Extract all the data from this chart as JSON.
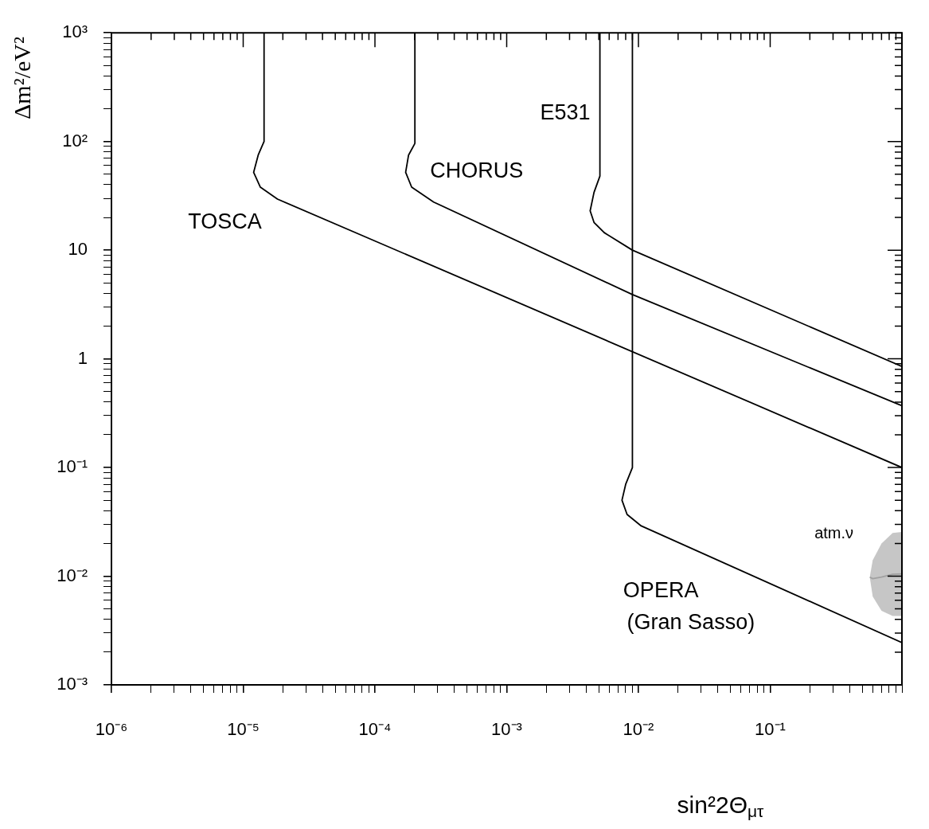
{
  "chart_data": {
    "type": "line",
    "xlabel": "sin²2Θ$_{μτ}$",
    "ylabel": "Δm²/eV²",
    "log": "xy",
    "grid": false,
    "legend": false,
    "xlim": [
      1e-06,
      1
    ],
    "ylim": [
      0.001,
      1000
    ],
    "xticks": [
      {
        "value": 1e-06,
        "label": "10⁻⁶"
      },
      {
        "value": 2e-06,
        "label": null
      },
      {
        "value": 3e-06,
        "label": null
      },
      {
        "value": 4e-06,
        "label": null
      },
      {
        "value": 5e-06,
        "label": null
      },
      {
        "value": 6e-06,
        "label": null
      },
      {
        "value": 7e-06,
        "label": null
      },
      {
        "value": 8e-06,
        "label": null
      },
      {
        "value": 9e-06,
        "label": null
      },
      {
        "value": 1e-05,
        "label": "10⁻⁵"
      },
      {
        "value": 2e-05,
        "label": null
      },
      {
        "value": 3e-05,
        "label": null
      },
      {
        "value": 4e-05,
        "label": null
      },
      {
        "value": 5e-05,
        "label": null
      },
      {
        "value": 6e-05,
        "label": null
      },
      {
        "value": 7e-05,
        "label": null
      },
      {
        "value": 8e-05,
        "label": null
      },
      {
        "value": 9e-05,
        "label": null
      },
      {
        "value": 0.0001,
        "label": "10⁻⁴"
      },
      {
        "value": 0.0002,
        "label": null
      },
      {
        "value": 0.0003,
        "label": null
      },
      {
        "value": 0.0004,
        "label": null
      },
      {
        "value": 0.0005,
        "label": null
      },
      {
        "value": 0.0006,
        "label": null
      },
      {
        "value": 0.0007,
        "label": null
      },
      {
        "value": 0.0008,
        "label": null
      },
      {
        "value": 0.0009,
        "label": null
      },
      {
        "value": 0.001,
        "label": "10⁻³"
      },
      {
        "value": 0.002,
        "label": null
      },
      {
        "value": 0.003,
        "label": null
      },
      {
        "value": 0.004,
        "label": null
      },
      {
        "value": 0.005,
        "label": null
      },
      {
        "value": 0.006,
        "label": null
      },
      {
        "value": 0.007,
        "label": null
      },
      {
        "value": 0.008,
        "label": null
      },
      {
        "value": 0.009,
        "label": null
      },
      {
        "value": 0.01,
        "label": "10⁻²"
      },
      {
        "value": 0.02,
        "label": null
      },
      {
        "value": 0.03,
        "label": null
      },
      {
        "value": 0.04,
        "label": null
      },
      {
        "value": 0.05,
        "label": null
      },
      {
        "value": 0.06,
        "label": null
      },
      {
        "value": 0.07,
        "label": null
      },
      {
        "value": 0.08,
        "label": null
      },
      {
        "value": 0.09,
        "label": null
      },
      {
        "value": 0.1,
        "label": "10⁻¹"
      },
      {
        "value": 0.2,
        "label": null
      },
      {
        "value": 0.3,
        "label": null
      },
      {
        "value": 0.4,
        "label": null
      },
      {
        "value": 0.5,
        "label": null
      },
      {
        "value": 0.6,
        "label": null
      },
      {
        "value": 0.7,
        "label": null
      },
      {
        "value": 0.8,
        "label": null
      },
      {
        "value": 0.9,
        "label": null
      },
      {
        "value": 1,
        "label": null
      }
    ],
    "yticks": [
      {
        "value": 0.001,
        "label": "10⁻³"
      },
      {
        "value": 0.002,
        "label": null
      },
      {
        "value": 0.003,
        "label": null
      },
      {
        "value": 0.004,
        "label": null
      },
      {
        "value": 0.005,
        "label": null
      },
      {
        "value": 0.006,
        "label": null
      },
      {
        "value": 0.007,
        "label": null
      },
      {
        "value": 0.008,
        "label": null
      },
      {
        "value": 0.009,
        "label": null
      },
      {
        "value": 0.01,
        "label": "10⁻²"
      },
      {
        "value": 0.02,
        "label": null
      },
      {
        "value": 0.03,
        "label": null
      },
      {
        "value": 0.04,
        "label": null
      },
      {
        "value": 0.05,
        "label": null
      },
      {
        "value": 0.06,
        "label": null
      },
      {
        "value": 0.07,
        "label": null
      },
      {
        "value": 0.08,
        "label": null
      },
      {
        "value": 0.09,
        "label": null
      },
      {
        "value": 0.1,
        "label": "10⁻¹"
      },
      {
        "value": 0.2,
        "label": null
      },
      {
        "value": 0.3,
        "label": null
      },
      {
        "value": 0.4,
        "label": null
      },
      {
        "value": 0.5,
        "label": null
      },
      {
        "value": 0.6,
        "label": null
      },
      {
        "value": 0.7,
        "label": null
      },
      {
        "value": 0.8,
        "label": null
      },
      {
        "value": 0.9,
        "label": null
      },
      1,
      {
        "value": 2,
        "label": null
      },
      {
        "value": 3,
        "label": null
      },
      {
        "value": 4,
        "label": null
      },
      {
        "value": 5,
        "label": null
      },
      {
        "value": 6,
        "label": null
      },
      {
        "value": 7,
        "label": null
      },
      {
        "value": 8,
        "label": null
      },
      {
        "value": 9,
        "label": null
      },
      10,
      {
        "value": 20,
        "label": null
      },
      {
        "value": 30,
        "label": null
      },
      {
        "value": 40,
        "label": null
      },
      {
        "value": 50,
        "label": null
      },
      {
        "value": 60,
        "label": null
      },
      {
        "value": 70,
        "label": null
      },
      {
        "value": 80,
        "label": null
      },
      {
        "value": 90,
        "label": null
      },
      {
        "value": 100,
        "label": "10²"
      },
      {
        "value": 200,
        "label": null
      },
      {
        "value": 300,
        "label": null
      },
      {
        "value": 400,
        "label": null
      },
      {
        "value": 500,
        "label": null
      },
      {
        "value": 600,
        "label": null
      },
      {
        "value": 700,
        "label": null
      },
      {
        "value": 800,
        "label": null
      },
      {
        "value": 900,
        "label": null
      },
      {
        "value": 1000,
        "label": "10³"
      }
    ],
    "series": [
      {
        "color": "#a0a0a0",
        "x": [
          0.57,
          0.6,
          0.7,
          0.85,
          1
        ],
        "values": [
          0.0098,
          0.0095,
          0.0098,
          0.0104,
          0.0105
        ],
        "lower": [
          0.0098,
          0.0065,
          0.0048,
          0.0043,
          0.0043
        ],
        "upper": [
          0.0098,
          0.014,
          0.02,
          0.025,
          0.0255
        ]
      },
      {
        "color": "#000000",
        "x": [
          1.44e-05,
          1.44e-05,
          1.3e-05,
          1.2e-05,
          1.35e-05,
          1.82e-05,
          1
        ],
        "values": [
          1000,
          100,
          75,
          52,
          38,
          29.5,
          0.1
        ]
      },
      {
        "color": "#000000",
        "x": [
          0.000201,
          0.000201,
          0.00018,
          0.000171,
          0.00019,
          0.000279,
          0.009,
          1
        ],
        "values": [
          1000,
          96,
          75,
          52,
          38,
          27.7,
          3.9,
          0.37
        ]
      },
      {
        "color": "#000000",
        "x": [
          0.0051,
          0.0051,
          0.0046,
          0.0043,
          0.0046,
          0.0055,
          0.009,
          1
        ],
        "values": [
          1000,
          48,
          34,
          23,
          18,
          14.5,
          10,
          0.85
        ]
      },
      {
        "color": "#000000",
        "x": [
          0.009,
          0.009,
          0.008,
          0.0075,
          0.0082,
          0.0105,
          1
        ],
        "values": [
          1000,
          0.1,
          0.07,
          0.05,
          0.037,
          0.029,
          0.00245
        ]
      }
    ],
    "annotations": [
      "TOSCA",
      "CHORUS",
      "E531",
      "OPERA",
      "(Gran Sasso)",
      "atm.ν"
    ]
  }
}
